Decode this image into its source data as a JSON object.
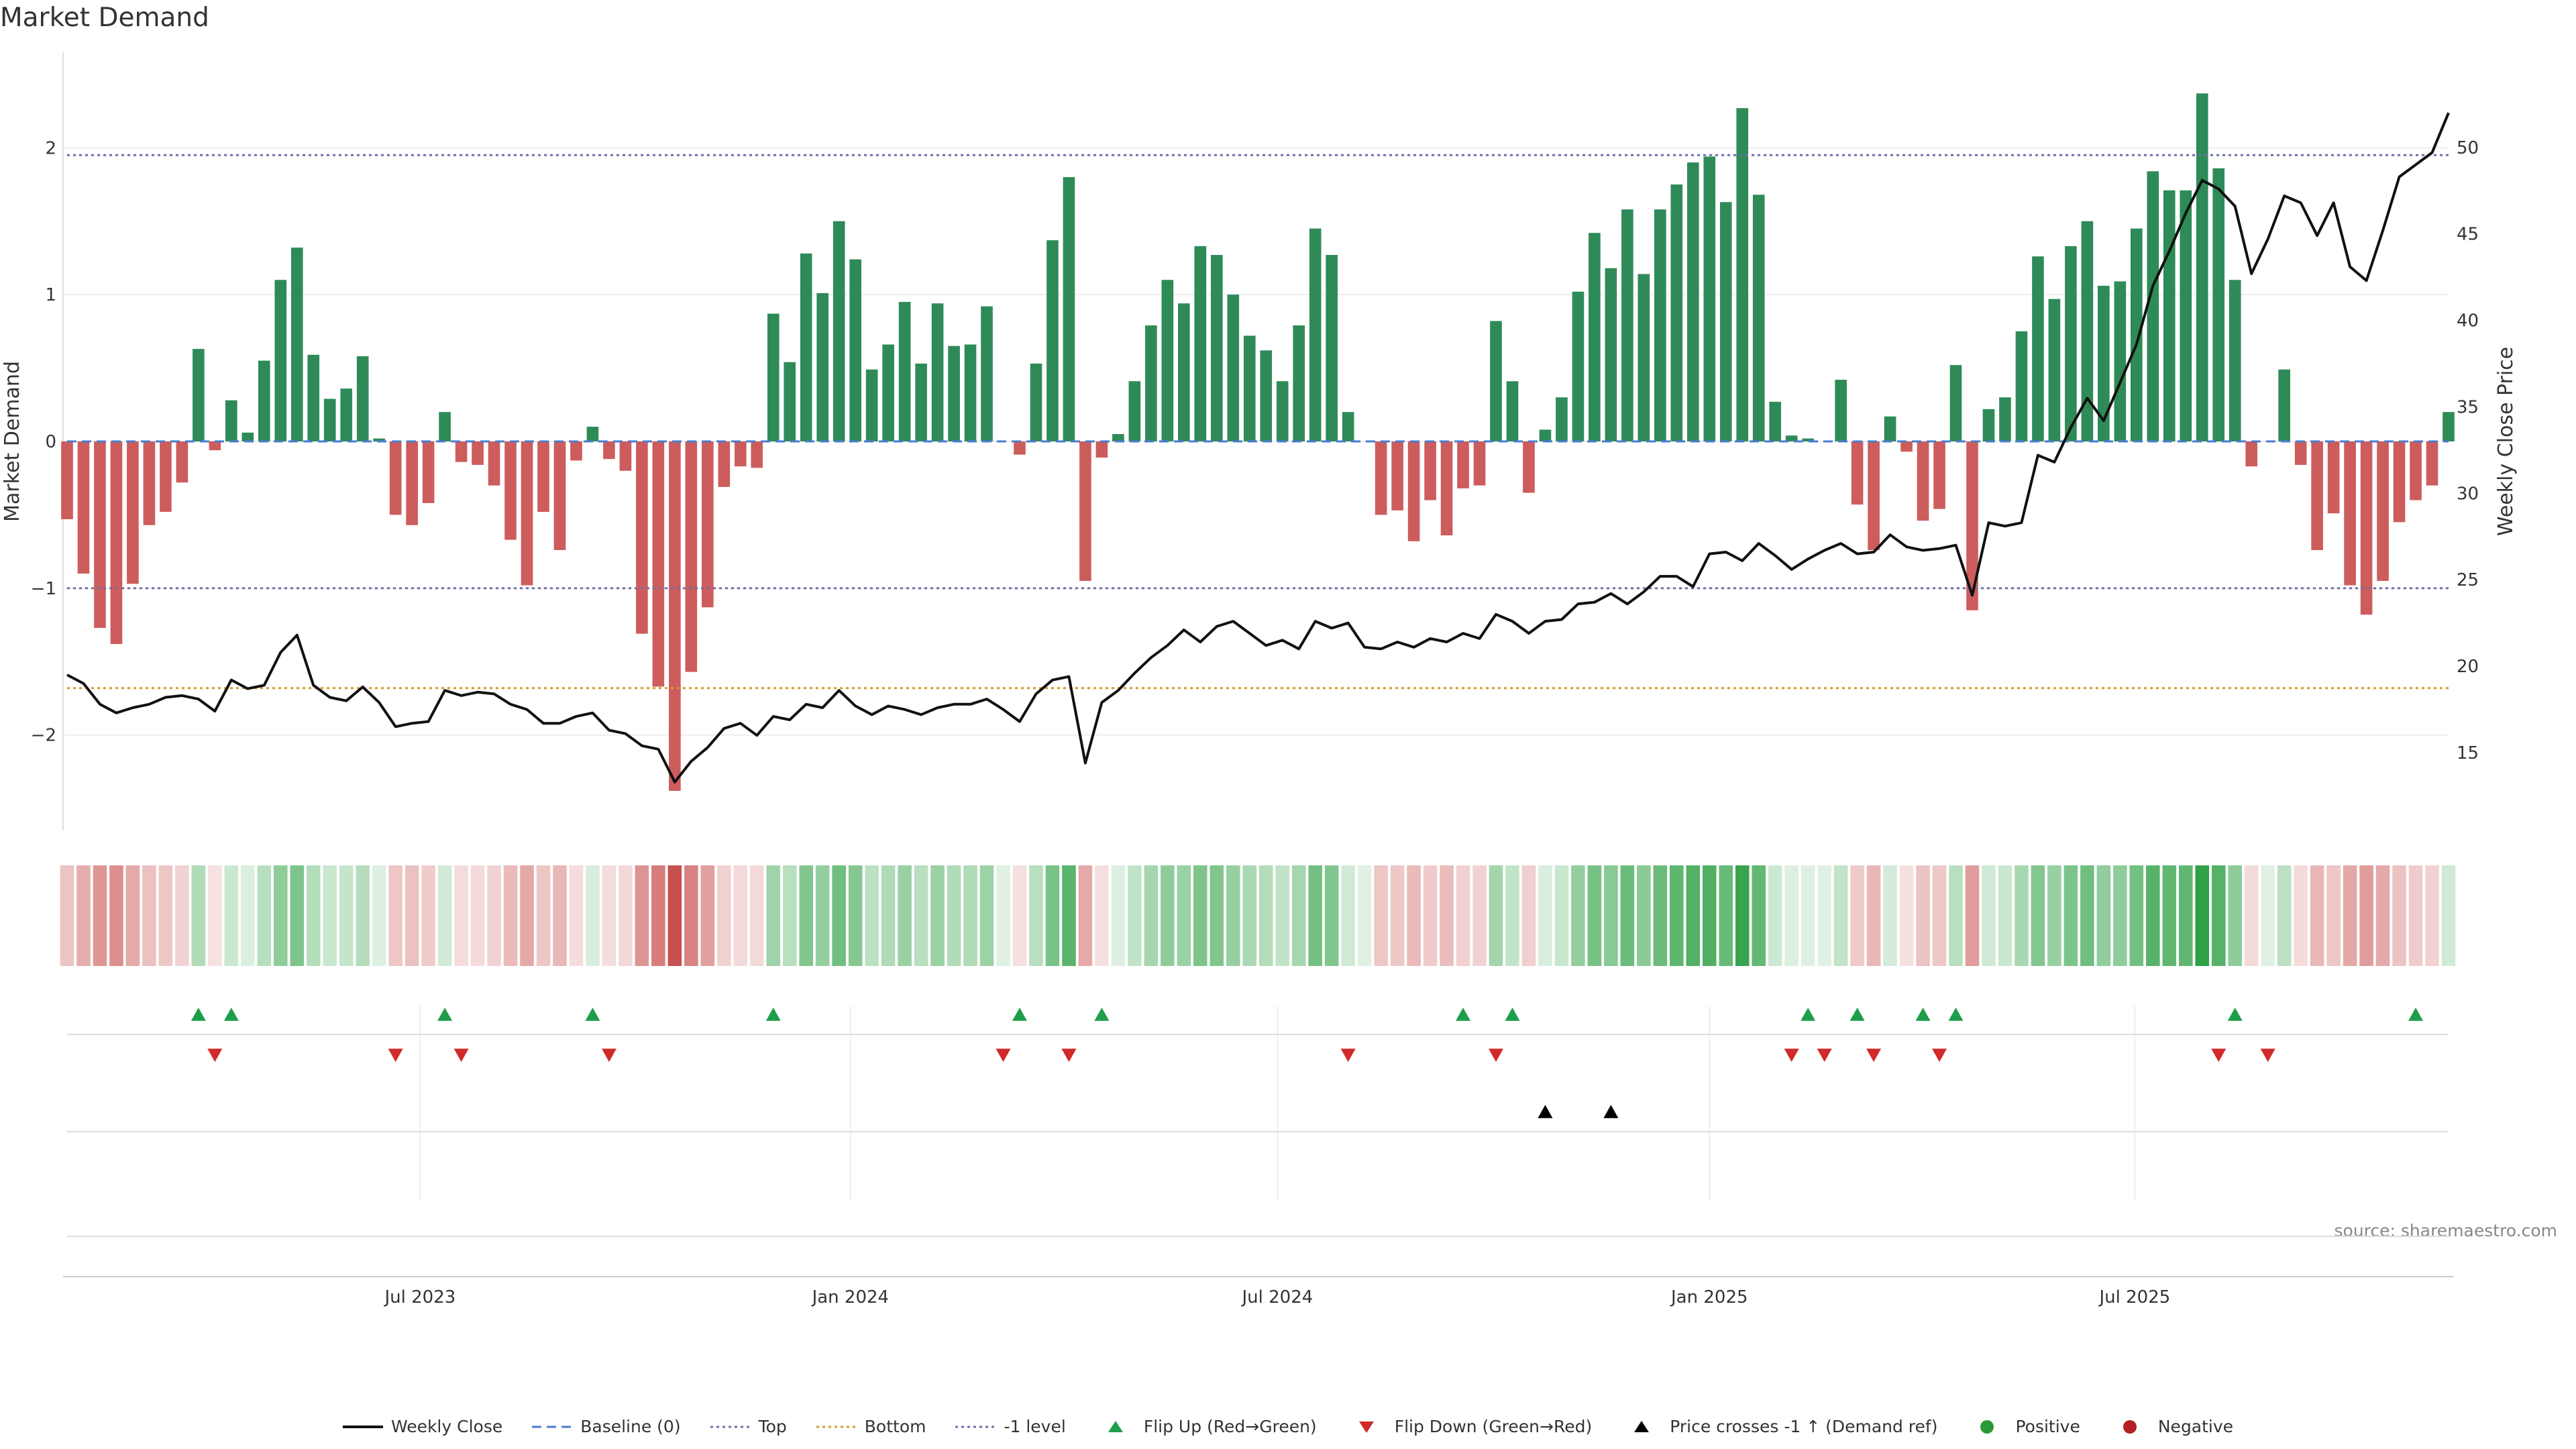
{
  "title": "Market Demand",
  "source": "source: sharemaestro.com",
  "colors": {
    "positive": "#2e8b57",
    "negative": "#cd5c5c",
    "price": "#111111",
    "baseline": "#4a7bd0",
    "top": "#6e6ea8",
    "bottom": "#d69a2a",
    "minus1": "#6e6ea8",
    "flip_up": "#1e9e4a",
    "flip_down": "#d02a2a",
    "cross": "#000000",
    "dot_pos": "#2a9a38",
    "dot_neg": "#b22222"
  },
  "legend": [
    {
      "key": "close",
      "label": "Weekly Close"
    },
    {
      "key": "baseline",
      "label": "Baseline (0)"
    },
    {
      "key": "top",
      "label": "Top"
    },
    {
      "key": "bottom",
      "label": "Bottom"
    },
    {
      "key": "minus1",
      "label": "-1 level"
    },
    {
      "key": "flipup",
      "label": "Flip Up (Red→Green)"
    },
    {
      "key": "flipdown",
      "label": "Flip Down (Green→Red)"
    },
    {
      "key": "cross",
      "label": "Price crosses -1 ↑ (Demand ref)"
    },
    {
      "key": "pos",
      "label": "Positive"
    },
    {
      "key": "neg",
      "label": "Negative"
    }
  ],
  "chart_data": {
    "type": "bar",
    "ylabel_left": "Market Demand",
    "ylabel_right": "Weekly Close Price",
    "y_left_range": [
      -2.65,
      2.65
    ],
    "y_left_ticks": [
      -2,
      -1,
      0,
      1,
      2
    ],
    "y_right_range": [
      10.5,
      55.5
    ],
    "y_right_ticks": [
      15,
      20,
      25,
      30,
      35,
      40,
      45,
      50
    ],
    "reference_lines": {
      "top": 1.95,
      "bottom": -1.68,
      "minus1": -1.0,
      "baseline": 0
    },
    "x_ticks": [
      {
        "label": "Jul 2023",
        "week": 21.5
      },
      {
        "label": "Jan 2024",
        "week": 47.7
      },
      {
        "label": "Jul 2024",
        "week": 73.7
      },
      {
        "label": "Jan 2025",
        "week": 100
      },
      {
        "label": "Jul 2025",
        "week": 125.9
      }
    ],
    "demand": [
      -0.53,
      -0.9,
      -1.27,
      -1.38,
      -0.97,
      -0.57,
      -0.48,
      -0.28,
      0.63,
      -0.06,
      0.28,
      0.06,
      0.55,
      1.1,
      1.32,
      0.59,
      0.29,
      0.36,
      0.58,
      0.02,
      -0.5,
      -0.57,
      -0.42,
      0.2,
      -0.14,
      -0.16,
      -0.3,
      -0.67,
      -0.98,
      -0.48,
      -0.74,
      -0.13,
      0.1,
      -0.12,
      -0.2,
      -1.31,
      -1.67,
      -2.38,
      -1.57,
      -1.13,
      -0.31,
      -0.17,
      -0.18,
      0.87,
      0.54,
      1.28,
      1.01,
      1.5,
      1.24,
      0.49,
      0.66,
      0.95,
      0.53,
      0.94,
      0.65,
      0.66,
      0.92,
      0.0,
      -0.09,
      0.53,
      1.37,
      1.8,
      -0.95,
      -0.11,
      0.05,
      0.41,
      0.79,
      1.1,
      0.94,
      1.33,
      1.27,
      1.0,
      0.72,
      0.62,
      0.41,
      0.79,
      1.45,
      1.27,
      0.2,
      0.0,
      -0.5,
      -0.47,
      -0.68,
      -0.4,
      -0.64,
      -0.32,
      -0.3,
      0.82,
      0.41,
      -0.35,
      0.08,
      0.3,
      1.02,
      1.42,
      1.18,
      1.58,
      1.14,
      1.58,
      1.75,
      1.9,
      1.94,
      1.63,
      2.27,
      1.68,
      0.27,
      0.04,
      0.02,
      0.0,
      0.42,
      -0.43,
      -0.74,
      0.17,
      -0.07,
      -0.54,
      -0.46,
      0.52,
      -1.15,
      0.22,
      0.3,
      0.75,
      1.26,
      0.97,
      1.33,
      1.5,
      1.06,
      1.09,
      1.45,
      1.84,
      1.71,
      1.71,
      2.37,
      1.86,
      1.1,
      -0.17,
      0.0,
      0.49,
      -0.16,
      -0.74,
      -0.49,
      -0.98,
      -1.18,
      -0.95,
      -0.55,
      -0.4,
      -0.3,
      0.2
    ],
    "close": [
      19.5,
      19.0,
      17.8,
      17.3,
      17.6,
      17.8,
      18.2,
      18.3,
      18.1,
      17.4,
      19.2,
      18.7,
      18.9,
      20.8,
      21.8,
      18.9,
      18.2,
      18.0,
      18.8,
      17.9,
      16.5,
      16.7,
      16.8,
      18.6,
      18.3,
      18.5,
      18.4,
      17.8,
      17.5,
      16.7,
      16.7,
      17.1,
      17.3,
      16.3,
      16.1,
      15.4,
      15.2,
      13.3,
      14.5,
      15.3,
      16.4,
      16.7,
      16.0,
      17.1,
      16.9,
      17.8,
      17.6,
      18.6,
      17.7,
      17.2,
      17.7,
      17.5,
      17.2,
      17.6,
      17.8,
      17.8,
      18.1,
      17.5,
      16.8,
      18.4,
      19.2,
      19.4,
      14.4,
      17.9,
      18.6,
      19.6,
      20.5,
      21.2,
      22.1,
      21.4,
      22.3,
      22.6,
      21.9,
      21.2,
      21.5,
      21.0,
      22.6,
      22.2,
      22.5,
      21.1,
      21.0,
      21.4,
      21.1,
      21.6,
      21.4,
      21.9,
      21.6,
      23.0,
      22.6,
      21.9,
      22.6,
      22.7,
      23.6,
      23.7,
      24.2,
      23.6,
      24.3,
      25.2,
      25.2,
      24.6,
      26.5,
      26.6,
      26.1,
      27.1,
      26.4,
      25.6,
      26.2,
      26.7,
      27.1,
      26.5,
      26.6,
      27.6,
      26.9,
      26.7,
      26.8,
      27.0,
      24.1,
      28.3,
      28.1,
      28.3,
      32.2,
      31.8,
      33.8,
      35.5,
      34.2,
      36.4,
      38.6,
      42.0,
      44.0,
      46.2,
      48.1,
      47.6,
      46.6,
      42.7,
      44.7,
      47.2,
      46.8,
      44.9,
      46.8,
      43.1,
      42.3,
      45.2,
      48.3,
      49.0,
      49.7,
      52.0
    ],
    "flip_up_weeks": [
      8,
      10,
      23,
      32,
      43,
      58,
      63,
      85,
      88,
      106,
      109,
      113,
      115,
      132,
      143
    ],
    "flip_down_weeks": [
      9,
      20,
      24,
      33,
      57,
      61,
      78,
      87,
      105,
      107,
      110,
      114,
      131,
      134
    ],
    "cross_weeks": [
      90,
      94
    ]
  }
}
